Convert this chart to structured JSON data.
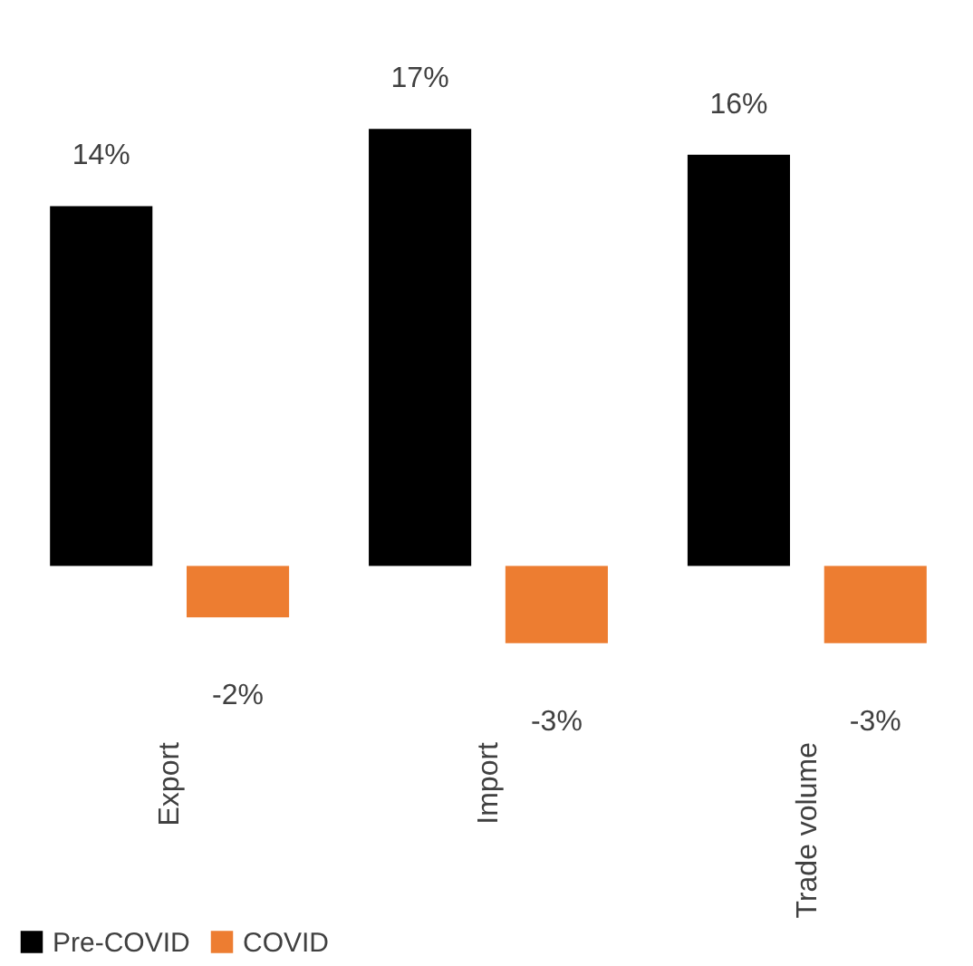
{
  "chart_data": {
    "type": "bar",
    "categories": [
      "Export",
      "Import",
      "Trade volume"
    ],
    "series": [
      {
        "name": "Pre-COVID",
        "color": "#000000",
        "values": [
          14,
          17,
          16
        ],
        "value_labels": [
          "14%",
          "17%",
          "16%"
        ]
      },
      {
        "name": "COVID",
        "color": "#ed7d31",
        "values": [
          -2,
          -3,
          -3
        ],
        "value_labels": [
          "-2%",
          "-3%",
          "-3%"
        ]
      }
    ],
    "legend": "bottom",
    "grid": false
  }
}
